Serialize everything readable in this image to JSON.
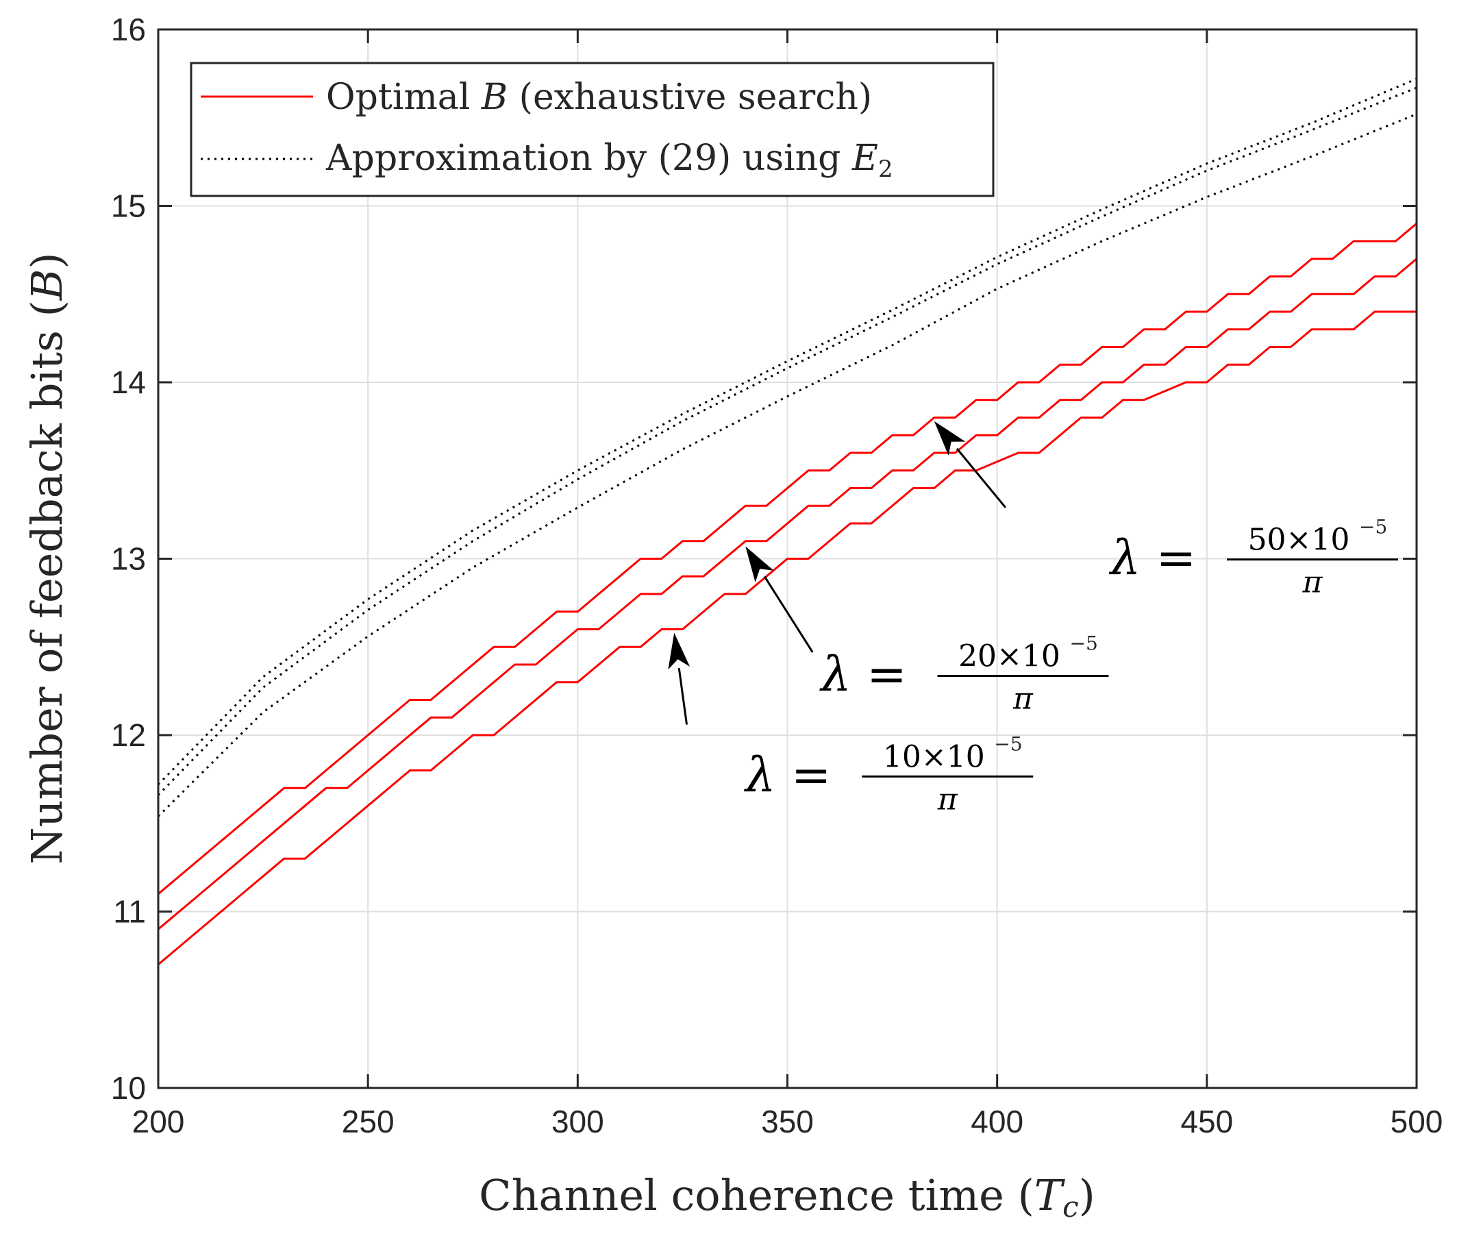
{
  "chart_data": {
    "type": "line",
    "xlabel": "Channel coherence time",
    "xlabel_symbol": "T",
    "xlabel_subscript": "c",
    "ylabel": "Number of feedback bits",
    "ylabel_symbol": "B",
    "xlim": [
      200,
      500
    ],
    "ylim": [
      10,
      16
    ],
    "xticks": [
      "200",
      "250",
      "300",
      "350",
      "400",
      "450",
      "500"
    ],
    "yticks": [
      "10",
      "11",
      "12",
      "13",
      "14",
      "15",
      "16"
    ],
    "grid": true,
    "legend": {
      "placement": "top-left",
      "entries": [
        {
          "pre": "Optimal ",
          "math": "B",
          "post": " (exhaustive search)",
          "style": "solid",
          "color": "#ff0000"
        },
        {
          "pre": "Approximation by (29) using ",
          "math": "E",
          "sub": "2",
          "post": "",
          "style": "dotted",
          "color": "#000000"
        }
      ]
    },
    "series": [
      {
        "name": "Optimal B, lambda=50e-5/pi",
        "style": "solid",
        "color": "#ff0000",
        "kind": "step",
        "points": [
          [
            200,
            11.1
          ],
          [
            230,
            11.7
          ],
          [
            235,
            11.7
          ],
          [
            260,
            12.2
          ],
          [
            265,
            12.2
          ],
          [
            280,
            12.5
          ],
          [
            285,
            12.5
          ],
          [
            295,
            12.7
          ],
          [
            300,
            12.7
          ],
          [
            315,
            13.0
          ],
          [
            320,
            13.0
          ],
          [
            325,
            13.1
          ],
          [
            330,
            13.1
          ],
          [
            340,
            13.3
          ],
          [
            345,
            13.3
          ],
          [
            355,
            13.5
          ],
          [
            360,
            13.5
          ],
          [
            365,
            13.6
          ],
          [
            370,
            13.6
          ],
          [
            375,
            13.7
          ],
          [
            380,
            13.7
          ],
          [
            385,
            13.8
          ],
          [
            390,
            13.8
          ],
          [
            395,
            13.9
          ],
          [
            400,
            13.9
          ],
          [
            405,
            14.0
          ],
          [
            410,
            14.0
          ],
          [
            415,
            14.1
          ],
          [
            420,
            14.1
          ],
          [
            425,
            14.2
          ],
          [
            430,
            14.2
          ],
          [
            435,
            14.3
          ],
          [
            440,
            14.3
          ],
          [
            445,
            14.4
          ],
          [
            450,
            14.4
          ],
          [
            455,
            14.5
          ],
          [
            460,
            14.5
          ],
          [
            465,
            14.6
          ],
          [
            470,
            14.6
          ],
          [
            475,
            14.7
          ],
          [
            480,
            14.7
          ],
          [
            485,
            14.8
          ],
          [
            495,
            14.8
          ],
          [
            500,
            14.9
          ]
        ]
      },
      {
        "name": "Optimal B, lambda=20e-5/pi",
        "style": "solid",
        "color": "#ff0000",
        "kind": "step",
        "points": [
          [
            200,
            10.9
          ],
          [
            240,
            11.7
          ],
          [
            245,
            11.7
          ],
          [
            265,
            12.1
          ],
          [
            270,
            12.1
          ],
          [
            285,
            12.4
          ],
          [
            290,
            12.4
          ],
          [
            300,
            12.6
          ],
          [
            305,
            12.6
          ],
          [
            315,
            12.8
          ],
          [
            320,
            12.8
          ],
          [
            325,
            12.9
          ],
          [
            330,
            12.9
          ],
          [
            340,
            13.1
          ],
          [
            345,
            13.1
          ],
          [
            355,
            13.3
          ],
          [
            360,
            13.3
          ],
          [
            365,
            13.4
          ],
          [
            370,
            13.4
          ],
          [
            375,
            13.5
          ],
          [
            380,
            13.5
          ],
          [
            385,
            13.6
          ],
          [
            390,
            13.6
          ],
          [
            395,
            13.7
          ],
          [
            400,
            13.7
          ],
          [
            405,
            13.8
          ],
          [
            410,
            13.8
          ],
          [
            415,
            13.9
          ],
          [
            420,
            13.9
          ],
          [
            425,
            14.0
          ],
          [
            430,
            14.0
          ],
          [
            435,
            14.1
          ],
          [
            440,
            14.1
          ],
          [
            445,
            14.2
          ],
          [
            450,
            14.2
          ],
          [
            455,
            14.3
          ],
          [
            460,
            14.3
          ],
          [
            465,
            14.4
          ],
          [
            470,
            14.4
          ],
          [
            475,
            14.5
          ],
          [
            485,
            14.5
          ],
          [
            490,
            14.6
          ],
          [
            495,
            14.6
          ],
          [
            500,
            14.7
          ]
        ]
      },
      {
        "name": "Optimal B, lambda=10e-5/pi",
        "style": "solid",
        "color": "#ff0000",
        "kind": "step",
        "points": [
          [
            200,
            10.7
          ],
          [
            230,
            11.3
          ],
          [
            235,
            11.3
          ],
          [
            260,
            11.8
          ],
          [
            265,
            11.8
          ],
          [
            275,
            12.0
          ],
          [
            280,
            12.0
          ],
          [
            295,
            12.3
          ],
          [
            300,
            12.3
          ],
          [
            310,
            12.5
          ],
          [
            315,
            12.5
          ],
          [
            320,
            12.6
          ],
          [
            325,
            12.6
          ],
          [
            335,
            12.8
          ],
          [
            340,
            12.8
          ],
          [
            350,
            13.0
          ],
          [
            355,
            13.0
          ],
          [
            365,
            13.2
          ],
          [
            370,
            13.2
          ],
          [
            380,
            13.4
          ],
          [
            385,
            13.4
          ],
          [
            390,
            13.5
          ],
          [
            395,
            13.5
          ],
          [
            405,
            13.6
          ],
          [
            410,
            13.6
          ],
          [
            420,
            13.8
          ],
          [
            425,
            13.8
          ],
          [
            430,
            13.9
          ],
          [
            435,
            13.9
          ],
          [
            445,
            14.0
          ],
          [
            450,
            14.0
          ],
          [
            455,
            14.1
          ],
          [
            460,
            14.1
          ],
          [
            465,
            14.2
          ],
          [
            470,
            14.2
          ],
          [
            475,
            14.3
          ],
          [
            485,
            14.3
          ],
          [
            490,
            14.4
          ],
          [
            500,
            14.4
          ]
        ]
      },
      {
        "name": "Approximation (29), lambda=50e-5/pi",
        "style": "dotted",
        "color": "#000000",
        "points": [
          [
            200,
            11.72
          ],
          [
            225,
            12.33
          ],
          [
            250,
            12.77
          ],
          [
            275,
            13.16
          ],
          [
            300,
            13.5
          ],
          [
            325,
            13.82
          ],
          [
            350,
            14.12
          ],
          [
            375,
            14.41
          ],
          [
            400,
            14.71
          ],
          [
            425,
            14.98
          ],
          [
            450,
            15.24
          ],
          [
            475,
            15.47
          ],
          [
            500,
            15.72
          ]
        ]
      },
      {
        "name": "Approximation (29), lambda=20e-5/pi",
        "style": "dotted",
        "color": "#000000",
        "points": [
          [
            200,
            11.66
          ],
          [
            225,
            12.27
          ],
          [
            250,
            12.71
          ],
          [
            275,
            13.1
          ],
          [
            300,
            13.45
          ],
          [
            325,
            13.78
          ],
          [
            350,
            14.08
          ],
          [
            375,
            14.37
          ],
          [
            400,
            14.67
          ],
          [
            425,
            14.94
          ],
          [
            450,
            15.2
          ],
          [
            475,
            15.43
          ],
          [
            500,
            15.67
          ]
        ]
      },
      {
        "name": "Approximation (29), lambda=10e-5/pi",
        "style": "dotted",
        "color": "#000000",
        "points": [
          [
            200,
            11.54
          ],
          [
            225,
            12.13
          ],
          [
            250,
            12.56
          ],
          [
            275,
            12.95
          ],
          [
            300,
            13.29
          ],
          [
            325,
            13.62
          ],
          [
            350,
            13.92
          ],
          [
            375,
            14.21
          ],
          [
            400,
            14.53
          ],
          [
            425,
            14.8
          ],
          [
            450,
            15.05
          ],
          [
            475,
            15.28
          ],
          [
            500,
            15.52
          ]
        ]
      }
    ],
    "annotations": [
      {
        "lhs": "λ =",
        "numerator": "50×10",
        "exponent": "−5",
        "denominator": "π",
        "text_at": [
          427,
          12.91
        ],
        "arrow_from": [
          402,
          13.29
        ],
        "arrow_to": [
          385,
          13.78
        ]
      },
      {
        "lhs": "λ =",
        "numerator": "20×10",
        "exponent": "−5",
        "denominator": "π",
        "text_at": [
          358,
          12.25
        ],
        "arrow_from": [
          356,
          12.47
        ],
        "arrow_to": [
          340,
          13.07
        ]
      },
      {
        "lhs": "λ =",
        "numerator": "10×10",
        "exponent": "−5",
        "denominator": "π",
        "text_at": [
          340,
          11.68
        ],
        "arrow_from": [
          326,
          12.06
        ],
        "arrow_to": [
          323,
          12.58
        ]
      }
    ]
  }
}
